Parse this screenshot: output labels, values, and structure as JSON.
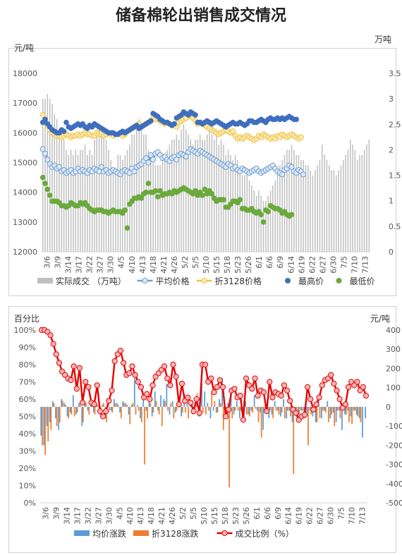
{
  "title": "储备棉轮出销售成交情况",
  "chart_data": [
    {
      "type": "combo",
      "left_unit": "元/吨",
      "right_unit": "万吨",
      "ylim_left": [
        12000,
        18000
      ],
      "ylim_right": [
        0,
        3.5
      ],
      "y_ticks_left": [
        12000,
        13000,
        14000,
        15000,
        16000,
        17000,
        18000
      ],
      "y_ticks_right": [
        0,
        0.5,
        1,
        1.5,
        2,
        2.5,
        3,
        3.5
      ],
      "x_tick_labels": [
        "3/6",
        "3/9",
        "3/14",
        "3/17",
        "3/22",
        "3/27",
        "3/30",
        "4/5",
        "4/10",
        "4/13",
        "4/18",
        "4/21",
        "4/26",
        "5/2",
        "5/5",
        "5/10",
        "5/15",
        "5/18",
        "5/23",
        "5/26",
        "6/1",
        "6/6",
        "6/9",
        "6/14",
        "6/19",
        "6/22",
        "6/27",
        "6/30",
        "7/5",
        "7/10",
        "7/13"
      ],
      "series": [
        {
          "name": "实际成交 （万吨）",
          "kind": "bar",
          "axis": "right",
          "color": "#bfbfbf",
          "values": [
            3.0,
            3.0,
            3.1,
            3.0,
            2.9,
            2.7,
            2.6,
            2.4,
            2.3,
            2.2,
            2.0,
            1.9,
            2.0,
            1.9,
            2.0,
            1.9,
            2.0,
            2.0,
            2.1,
            1.9,
            2.0,
            1.9,
            2.2,
            2.4,
            2.5,
            2.3,
            2.3,
            2.2,
            2.0,
            1.8,
            1.6,
            1.6,
            1.9,
            1.9,
            1.8,
            1.9,
            2.0,
            2.1,
            2.3,
            2.3,
            2.4,
            2.6,
            2.5,
            2.3,
            2.3,
            2.0,
            1.9,
            1.8,
            1.7,
            1.7,
            1.7,
            1.8,
            1.9,
            2.0,
            2.1,
            2.2,
            2.2,
            2.3,
            2.2,
            2.4,
            2.5,
            2.4,
            2.3,
            2.2,
            2.1,
            2.2,
            2.2,
            2.3,
            2.2,
            2.2,
            2.3,
            2.4,
            2.3,
            2.2,
            2.3,
            2.1,
            2.2,
            2.1,
            1.9,
            2.0,
            1.9,
            1.8,
            1.9,
            1.8,
            1.6,
            1.5,
            1.5,
            1.6,
            1.4,
            1.3,
            1.2,
            1.1,
            1.2,
            1.1,
            1.0,
            1.0,
            1.1,
            1.2,
            1.3,
            1.4,
            1.6,
            1.7,
            1.8,
            1.9,
            2.0,
            2.0,
            2.1,
            2.0,
            1.9,
            1.9,
            1.8,
            1.8,
            1.7,
            1.7,
            1.6,
            1.5,
            1.6,
            1.7,
            1.8,
            2.1,
            1.9,
            1.8,
            1.7,
            1.6,
            1.6,
            1.5,
            1.6,
            1.7,
            1.8,
            1.9,
            2.0,
            2.2,
            2.1,
            2.0,
            1.8,
            1.9,
            1.9,
            2.0,
            2.1,
            2.2
          ]
        },
        {
          "name": "平均价格",
          "kind": "line",
          "axis": "left",
          "color": "#6f9fd0",
          "marker_fill": "#dde8f5",
          "values": [
            15450,
            15300,
            15100,
            14950,
            14850,
            14900,
            14800,
            14850,
            14700,
            14750,
            14650,
            14700,
            14750,
            14650,
            14700,
            14800,
            14700,
            14750,
            14700,
            14650,
            14750,
            14700,
            14800,
            14750,
            14700,
            14850,
            14700,
            14750,
            14650,
            14700,
            14750,
            14700,
            14650,
            14600,
            14700,
            14750,
            14700,
            14650,
            14800,
            14700,
            14850,
            14900,
            14950,
            15050,
            15150,
            15000,
            15250,
            15100,
            15300,
            15350,
            15250,
            15150,
            15200,
            15100,
            15050,
            15150,
            15200,
            15100,
            15250,
            15300,
            15250,
            15200,
            15350,
            15450,
            15400,
            15350,
            15300,
            15400,
            15350,
            15300,
            15250,
            15200,
            15150,
            15100,
            15050,
            15000,
            14950,
            14900,
            14850,
            14950,
            14900,
            14800,
            14850,
            14750,
            14700,
            14800,
            14750,
            14700,
            14650,
            14700,
            14750,
            14800,
            14700,
            14650,
            14700,
            14750,
            14800,
            14850,
            14900,
            14800,
            14700,
            14650,
            14600,
            14750,
            14800,
            14900,
            14850,
            14700,
            14650,
            14750,
            14700,
            14600
          ]
        },
        {
          "name": "折3128价格",
          "kind": "line",
          "axis": "left",
          "color": "#f2c43d",
          "marker_fill": "#f7e9b8",
          "values": [
            16600,
            16400,
            16250,
            16100,
            16000,
            15950,
            15900,
            15900,
            15850,
            15900,
            15950,
            15900,
            15850,
            15900,
            15900,
            15950,
            15900,
            15950,
            16000,
            15950,
            15950,
            15900,
            15900,
            16000,
            15950,
            15950,
            15900,
            15950,
            16000,
            15950,
            15900,
            15950,
            15950,
            16000,
            15900,
            15950,
            16050,
            16100,
            16150,
            16200,
            16250,
            16300,
            16200,
            16250,
            16300,
            16350,
            16400,
            16500,
            16450,
            16500,
            16400,
            16350,
            16300,
            16350,
            16300,
            16250,
            16300,
            16200,
            16350,
            16400,
            16450,
            16500,
            16600,
            16550,
            16500,
            16400,
            16300,
            16350,
            16300,
            16250,
            16200,
            16150,
            16100,
            16050,
            16000,
            15950,
            16000,
            16050,
            16100,
            16050,
            16000,
            16050,
            15900,
            15800,
            15850,
            15800,
            15850,
            15900,
            15850,
            15800,
            15750,
            15800,
            15900,
            15850,
            15950,
            15900,
            15850,
            15800,
            15850,
            15800,
            15900,
            15850,
            15950,
            15900,
            15850,
            15900,
            15950,
            15900,
            15850,
            15800,
            15850
          ]
        },
        {
          "name": "最高价",
          "kind": "scatter",
          "axis": "left",
          "color": "#3e6ebf",
          "values": [
            16350,
            16450,
            16300,
            16200,
            16100,
            16050,
            16000,
            16000,
            16100,
            16050,
            16350,
            16200,
            16150,
            16200,
            16250,
            16300,
            16250,
            16300,
            16200,
            16150,
            16250,
            16200,
            16300,
            16250,
            16200,
            16150,
            16100,
            16050,
            16000,
            16000,
            16000,
            15950,
            15950,
            16000,
            16050,
            16000,
            16050,
            16100,
            16150,
            16200,
            16250,
            16150,
            16200,
            16250,
            16300,
            16350,
            16400,
            16650,
            16600,
            16550,
            16450,
            16400,
            16350,
            16350,
            16300,
            16250,
            16300,
            16500,
            16550,
            16600,
            16700,
            16650,
            16600,
            16700,
            16650,
            16600,
            16350,
            16350,
            16300,
            16350,
            16400,
            16350,
            16300,
            16350,
            16400,
            16350,
            16300,
            16250,
            16200,
            16250,
            16300,
            16350,
            16300,
            16300,
            16350,
            16300,
            16250,
            16300,
            16400,
            16400,
            16350,
            16350,
            16400,
            16450,
            16400,
            16350,
            16450,
            16500,
            16450,
            16450,
            16500,
            16450,
            16500,
            16450,
            16500,
            16550,
            16500,
            16450,
            16450
          ]
        },
        {
          "name": "最低价",
          "kind": "scatter",
          "axis": "left",
          "color": "#6aaa3c",
          "values": [
            14500,
            14300,
            14100,
            13900,
            13700,
            13700,
            13700,
            13650,
            13550,
            13550,
            13500,
            13550,
            13650,
            13600,
            13550,
            13550,
            13650,
            13600,
            13650,
            13550,
            13450,
            13400,
            13350,
            13400,
            13400,
            13400,
            13350,
            13350,
            13300,
            13350,
            13400,
            13350,
            13350,
            13350,
            13300,
            13400,
            12800,
            13600,
            13700,
            13800,
            13800,
            13850,
            13800,
            13950,
            14000,
            14300,
            14000,
            14000,
            14050,
            13850,
            14050,
            13900,
            13950,
            13950,
            14000,
            13950,
            14050,
            14000,
            14050,
            14100,
            14150,
            14100,
            14050,
            14000,
            13950,
            14050,
            13900,
            14000,
            13900,
            14100,
            13950,
            14050,
            13950,
            13800,
            13700,
            13750,
            13750,
            13750,
            13500,
            13500,
            13600,
            13700,
            13700,
            13650,
            13750,
            13450,
            13450,
            13400,
            13400,
            13450,
            13350,
            13300,
            13350,
            13250,
            13000,
            13400,
            13350,
            13550,
            13500,
            13450,
            13450,
            13400,
            13300,
            13350,
            13250,
            13200,
            13250
          ]
        }
      ]
    },
    {
      "type": "combo",
      "left_unit": "百分比",
      "right_unit": "元/吨",
      "ylim_left": [
        0,
        100
      ],
      "ylim_right": [
        -500,
        400
      ],
      "y_ticks_left": [
        "0%",
        "10%",
        "20%",
        "30%",
        "40%",
        "50%",
        "60%",
        "70%",
        "80%",
        "90%",
        "100%"
      ],
      "y_ticks_right": [
        -500,
        -400,
        -300,
        -200,
        -100,
        0,
        100,
        200,
        300,
        400
      ],
      "x_tick_labels": [
        "3/6",
        "3/9",
        "3/14",
        "3/17",
        "3/22",
        "3/27",
        "3/30",
        "4/5",
        "4/10",
        "4/13",
        "4/18",
        "4/21",
        "4/26",
        "5/2",
        "5/5",
        "5/10",
        "5/15",
        "5/18",
        "5/23",
        "5/26",
        "6/1",
        "6/6",
        "6/9",
        "6/14",
        "6/19",
        "6/22",
        "6/27",
        "6/30",
        "7/5",
        "7/10",
        "7/13"
      ],
      "series": [
        {
          "name": "均价涨跌",
          "kind": "bar",
          "axis": "right",
          "color": "#5b9bd5",
          "values": [
            -150,
            -200,
            -100,
            -80,
            30,
            -60,
            -120,
            40,
            20,
            -50,
            -30,
            60,
            -40,
            20,
            -100,
            30,
            -20,
            50,
            -30,
            20,
            -40,
            10,
            -60,
            30,
            -20,
            40,
            20,
            -30,
            30,
            20,
            -40,
            10,
            150,
            10,
            -60,
            40,
            -20,
            30,
            -50,
            80,
            -20,
            60,
            40,
            120,
            -40,
            30,
            -30,
            50,
            -50,
            70,
            20,
            30,
            -40,
            30,
            -50,
            120,
            80,
            20,
            -60,
            -20,
            -30,
            40,
            150,
            -30,
            20,
            90,
            -40,
            30,
            -60,
            -20,
            30,
            -40,
            -20,
            60,
            -20,
            -30,
            -120,
            -30,
            -60,
            -40,
            30,
            -20,
            -50,
            40,
            -60,
            -20,
            -80,
            -30,
            -60,
            -20,
            -40,
            -30,
            -20,
            -50,
            -80,
            40,
            -60,
            -20,
            30,
            -60,
            -30,
            -80,
            -20,
            -120,
            -40,
            -20,
            -50,
            -20,
            -40,
            -60,
            -160,
            -60
          ]
        },
        {
          "name": "折3128涨跌",
          "kind": "bar",
          "axis": "right",
          "color": "#ed7d31",
          "values": [
            -200,
            -250,
            -180,
            -120,
            20,
            -100,
            -80,
            30,
            10,
            -60,
            -40,
            -50,
            -30,
            10,
            -80,
            20,
            -40,
            30,
            -40,
            10,
            -50,
            20,
            -80,
            -20,
            -30,
            20,
            10,
            -60,
            20,
            10,
            -90,
            20,
            -40,
            -20,
            -80,
            -300,
            -60,
            20,
            -30,
            30,
            -40,
            -100,
            30,
            -20,
            20,
            -60,
            -20,
            40,
            -30,
            -30,
            -60,
            30,
            -20,
            70,
            -50,
            -30,
            -40,
            -20,
            80,
            30,
            -30,
            20,
            -120,
            -40,
            -420,
            -60,
            -20,
            -20,
            -20,
            30,
            -40,
            -50,
            -30,
            -10,
            -80,
            -160,
            -20,
            -30,
            -20,
            -60,
            -20,
            -40,
            -30,
            -60,
            -20,
            -50,
            -350,
            -30,
            -40,
            -20,
            -60,
            -200,
            -40,
            -20,
            -80,
            -60,
            -20,
            -30,
            -80,
            -40,
            -100,
            -20,
            -60,
            -20,
            -40,
            -80,
            -90,
            -20,
            -50,
            -80
          ]
        },
        {
          "name": "成交比例（%）",
          "kind": "line",
          "axis": "left",
          "color": "#e60000",
          "marker_fill": "#f4b6b6",
          "values": [
            100,
            100,
            99,
            97,
            92,
            86,
            81,
            76,
            74,
            72,
            71,
            79,
            66,
            78,
            58,
            70,
            67,
            58,
            57,
            68,
            53,
            50,
            53,
            59,
            65,
            82,
            86,
            88,
            81,
            74,
            75,
            79,
            74,
            70,
            67,
            61,
            63,
            60,
            68,
            73,
            75,
            77,
            79,
            72,
            68,
            80,
            73,
            57,
            69,
            59,
            61,
            58,
            53,
            60,
            52,
            80,
            80,
            70,
            72,
            64,
            67,
            71,
            67,
            50,
            54,
            65,
            66,
            61,
            62,
            48,
            72,
            68,
            66,
            72,
            62,
            65,
            64,
            53,
            70,
            61,
            64,
            63,
            62,
            68,
            65,
            59,
            54,
            52,
            48,
            50,
            51,
            67,
            60,
            54,
            57,
            61,
            68,
            71,
            72,
            74,
            69,
            65,
            60,
            55,
            57,
            67,
            70,
            68,
            70,
            65,
            67,
            62
          ]
        }
      ]
    }
  ]
}
